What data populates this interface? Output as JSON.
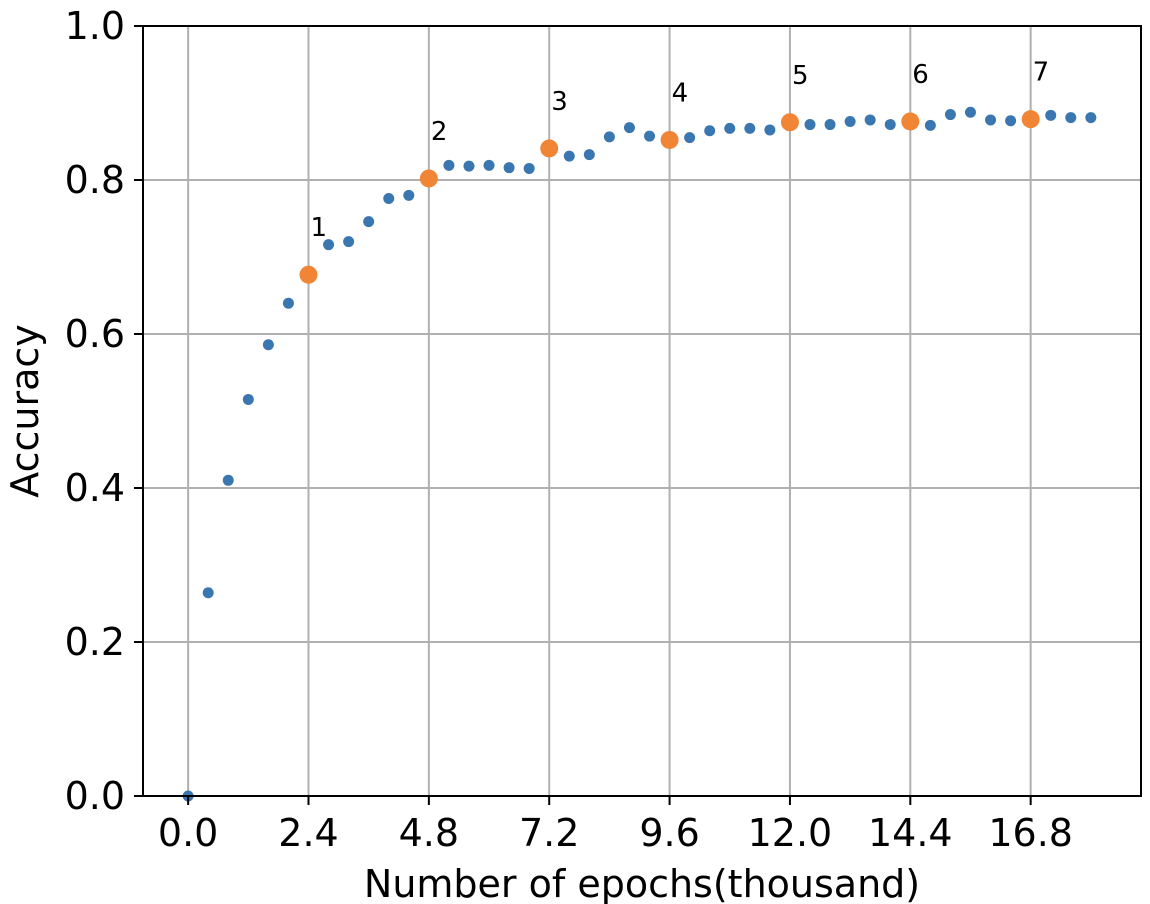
{
  "chart_data": {
    "type": "scatter",
    "title": "",
    "xlabel": "Number of epochs(thousand)",
    "ylabel": "Accuracy",
    "xlim": [
      -0.9,
      19.0
    ],
    "ylim": [
      0.0,
      1.0
    ],
    "grid": true,
    "x_ticks": [
      0.0,
      2.4,
      4.8,
      7.2,
      9.6,
      12.0,
      14.4,
      16.8
    ],
    "x_tick_labels": [
      "0.0",
      "2.4",
      "4.8",
      "7.2",
      "9.6",
      "12.0",
      "14.4",
      "16.8"
    ],
    "y_ticks": [
      0.0,
      0.2,
      0.4,
      0.6,
      0.8,
      1.0
    ],
    "y_tick_labels": [
      "0.0",
      "0.2",
      "0.4",
      "0.6",
      "0.8",
      "1.0"
    ],
    "series": [
      {
        "name": "accuracy",
        "color": "#3a76af",
        "x": [
          0.0,
          0.4,
          0.8,
          1.2,
          1.6,
          2.0,
          2.4,
          2.8,
          3.2,
          3.6,
          4.0,
          4.4,
          4.8,
          5.2,
          5.6,
          6.0,
          6.4,
          6.8,
          7.2,
          7.6,
          8.0,
          8.4,
          8.8,
          9.2,
          9.6,
          10.0,
          10.4,
          10.8,
          11.2,
          11.6,
          12.0,
          12.4,
          12.8,
          13.2,
          13.6,
          14.0,
          14.4,
          14.8,
          15.2,
          15.6,
          16.0,
          16.4,
          16.8,
          17.2,
          17.6,
          18.0
        ],
        "y": [
          0.0,
          0.264,
          0.41,
          0.515,
          0.586,
          0.64,
          0.677,
          0.716,
          0.72,
          0.746,
          0.776,
          0.78,
          0.802,
          0.819,
          0.818,
          0.819,
          0.816,
          0.815,
          0.841,
          0.831,
          0.833,
          0.856,
          0.868,
          0.857,
          0.852,
          0.855,
          0.864,
          0.867,
          0.867,
          0.865,
          0.875,
          0.872,
          0.872,
          0.876,
          0.878,
          0.872,
          0.876,
          0.871,
          0.885,
          0.888,
          0.878,
          0.877,
          0.879,
          0.884,
          0.881,
          0.881
        ]
      },
      {
        "name": "checkpoints",
        "color": "#f08536",
        "x": [
          2.4,
          4.8,
          7.2,
          9.6,
          12.0,
          14.4,
          16.8
        ],
        "y": [
          0.677,
          0.802,
          0.841,
          0.852,
          0.875,
          0.876,
          0.879
        ]
      }
    ],
    "annotations": [
      {
        "text": "1",
        "x": 2.4,
        "y": 0.727
      },
      {
        "text": "2",
        "x": 4.8,
        "y": 0.852
      },
      {
        "text": "3",
        "x": 7.2,
        "y": 0.891
      },
      {
        "text": "4",
        "x": 9.6,
        "y": 0.902
      },
      {
        "text": "5",
        "x": 12.0,
        "y": 0.925
      },
      {
        "text": "6",
        "x": 14.4,
        "y": 0.926
      },
      {
        "text": "7",
        "x": 16.8,
        "y": 0.929
      }
    ]
  }
}
